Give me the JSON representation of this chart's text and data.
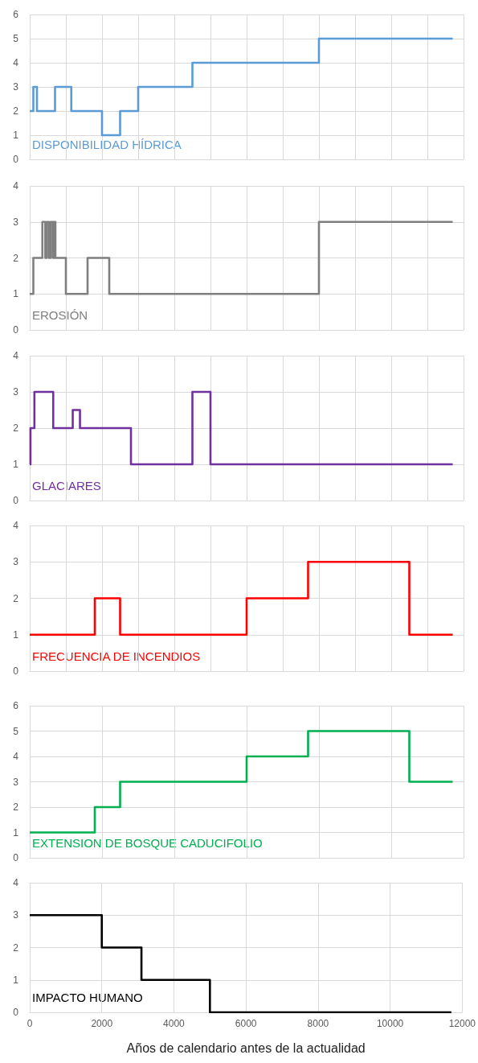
{
  "chart_data": [
    {
      "type": "step",
      "tick_labels": "y",
      "grid": true,
      "legend": false,
      "marker": "none",
      "xlim": [
        0,
        12000
      ],
      "xticks": [
        0,
        1000,
        2000,
        3000,
        4000,
        5000,
        6000,
        7000,
        8000,
        9000,
        10000,
        11000,
        12000
      ],
      "ylim": [
        0,
        6
      ],
      "yticks": [
        0,
        1,
        2,
        3,
        4,
        5,
        6
      ],
      "series": [
        {
          "name": "DISPONIBILIDAD HÍDRICA",
          "color": "#5b9bd5",
          "x": [
            0,
            100,
            200,
            700,
            1150,
            2000,
            2500,
            3000,
            4500,
            8000,
            11700
          ],
          "values": [
            2,
            3,
            2,
            3,
            2,
            1,
            2,
            3,
            4,
            5,
            5
          ]
        }
      ]
    },
    {
      "type": "step",
      "tick_labels": "y",
      "grid": true,
      "legend": false,
      "marker": "none",
      "xlim": [
        0,
        12000
      ],
      "xticks": [
        0,
        1000,
        2000,
        3000,
        4000,
        5000,
        6000,
        7000,
        8000,
        9000,
        10000,
        11000,
        12000
      ],
      "ylim": [
        0,
        4
      ],
      "yticks": [
        0,
        1,
        2,
        3,
        4
      ],
      "series": [
        {
          "name": "EROSIÓN",
          "color": "#7f7f7f",
          "x": [
            0,
            100,
            350,
            430,
            470,
            530,
            580,
            640,
            670,
            710,
            1000,
            1600,
            2200,
            8000,
            11700
          ],
          "values": [
            1,
            2,
            3,
            2,
            3,
            2,
            3,
            2,
            3,
            2,
            1,
            2,
            1,
            3,
            3
          ]
        }
      ]
    },
    {
      "type": "step",
      "tick_labels": "y",
      "grid": true,
      "legend": false,
      "marker": "none",
      "xlim": [
        0,
        12000
      ],
      "xticks": [
        0,
        1000,
        2000,
        3000,
        4000,
        5000,
        6000,
        7000,
        8000,
        9000,
        10000,
        11000,
        12000
      ],
      "ylim": [
        0,
        4
      ],
      "yticks": [
        0,
        1,
        2,
        3,
        4
      ],
      "series": [
        {
          "name": "GLACIARES",
          "color": "#7030a0",
          "x": [
            0,
            20,
            130,
            650,
            1190,
            1390,
            2800,
            4500,
            5000,
            11700
          ],
          "values": [
            1,
            2,
            3,
            2,
            2.5,
            2,
            1,
            3,
            1,
            1
          ]
        }
      ]
    },
    {
      "type": "step",
      "tick_labels": "y",
      "grid": true,
      "legend": false,
      "marker": "none",
      "xlim": [
        0,
        12000
      ],
      "xticks": [
        0,
        1000,
        2000,
        3000,
        4000,
        5000,
        6000,
        7000,
        8000,
        9000,
        10000,
        11000,
        12000
      ],
      "ylim": [
        0,
        4
      ],
      "yticks": [
        0,
        1,
        2,
        3,
        4
      ],
      "series": [
        {
          "name": "FRECUENCIA DE INCENDIOS",
          "color": "#ff0000",
          "x": [
            0,
            1800,
            2500,
            6000,
            7700,
            10500,
            11700
          ],
          "values": [
            1,
            2,
            1,
            2,
            3,
            1,
            1
          ]
        }
      ]
    },
    {
      "type": "step",
      "tick_labels": "y",
      "grid": true,
      "legend": false,
      "marker": "none",
      "xlim": [
        0,
        12000
      ],
      "xticks": [
        0,
        2000,
        4000,
        6000,
        8000,
        10000,
        12000
      ],
      "ylim": [
        0,
        6
      ],
      "yticks": [
        0,
        1,
        2,
        3,
        4,
        5,
        6
      ],
      "series": [
        {
          "name": "EXTENSION DE BOSQUE CADUCIFOLIO",
          "color": "#00b050",
          "x": [
            0,
            1800,
            2500,
            6000,
            7700,
            10500,
            11700
          ],
          "values": [
            1,
            2,
            3,
            4,
            5,
            3,
            3
          ]
        }
      ]
    },
    {
      "type": "step",
      "grid": true,
      "legend": false,
      "marker": "none",
      "xlabel": "Años de calendario antes de la actualidad",
      "xlim": [
        0,
        12000
      ],
      "xticks": [
        0,
        2000,
        4000,
        6000,
        8000,
        10000,
        12000
      ],
      "ylim": [
        0,
        4
      ],
      "yticks": [
        0,
        1,
        2,
        3,
        4
      ],
      "series": [
        {
          "name": "IMPACTO HUMANO",
          "color": "#000000",
          "x": [
            0,
            2000,
            3100,
            5000,
            11700
          ],
          "values": [
            3,
            2,
            1,
            0,
            0
          ]
        }
      ]
    }
  ]
}
